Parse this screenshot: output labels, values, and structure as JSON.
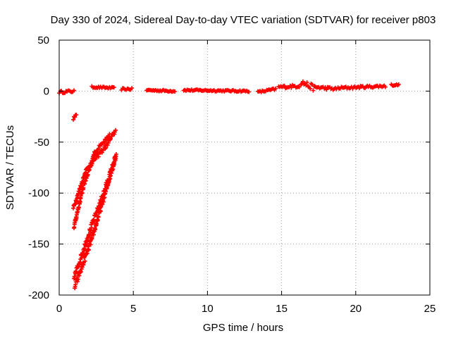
{
  "chart_data": {
    "type": "scatter",
    "title": "Day 330 of 2024, Sidereal Day-to-day VTEC variation (SDTVAR) for receiver p803",
    "xlabel": "GPS time / hours",
    "ylabel": "SDTVAR / TECUs",
    "xlim": [
      0,
      25
    ],
    "ylim": [
      -200,
      50
    ],
    "xticks": [
      0,
      5,
      10,
      15,
      20,
      25
    ],
    "yticks": [
      -200,
      -150,
      -100,
      -50,
      0,
      50
    ],
    "grid": true,
    "marker": "plus",
    "color": "#ff0000",
    "series": [
      {
        "name": "SDTVAR",
        "segments": [
          {
            "x": [
              0.0,
              1.0
            ],
            "y": [
              -1,
              0
            ],
            "noise": 1.2
          },
          {
            "x": [
              2.2,
              3.7
            ],
            "y": [
              4,
              3
            ],
            "noise": 0.8
          },
          {
            "x": [
              4.2,
              4.9
            ],
            "y": [
              2,
              2
            ],
            "noise": 1.0
          },
          {
            "x": [
              5.9,
              7.8
            ],
            "y": [
              1,
              0
            ],
            "noise": 0.8
          },
          {
            "x": [
              8.4,
              12.8
            ],
            "y": [
              1,
              0
            ],
            "noise": 0.8
          },
          {
            "x": [
              13.4,
              14.6
            ],
            "y": [
              -1,
              2
            ],
            "noise": 1.0
          },
          {
            "x": [
              14.8,
              16.2
            ],
            "y": [
              4,
              5
            ],
            "noise": 1.5
          },
          {
            "x": [
              16.3,
              17.2
            ],
            "y": [
              9,
              3
            ],
            "noise": 3.0
          },
          {
            "x": [
              17.2,
              18.7
            ],
            "y": [
              4,
              2
            ],
            "noise": 1.5
          },
          {
            "x": [
              18.8,
              22.0
            ],
            "y": [
              3,
              5
            ],
            "noise": 1.2
          },
          {
            "x": [
              22.4,
              22.9
            ],
            "y": [
              6,
              6
            ],
            "noise": 0.8
          },
          {
            "x": [
              0.95,
              1.15
            ],
            "y": [
              -27,
              -23
            ],
            "noise": 1.0
          },
          {
            "x": [
              0.95,
              1.8,
              2.5,
              3.1,
              3.8
            ],
            "y": [
              -115,
              -78,
              -65,
              -55,
              -39
            ],
            "noise": 2.0
          },
          {
            "x": [
              1.0,
              1.6,
              2.4,
              3.4
            ],
            "y": [
              -133,
              -95,
              -60,
              -44
            ],
            "noise": 2.0
          },
          {
            "x": [
              1.0,
              2.0,
              3.0,
              3.8
            ],
            "y": [
              -183,
              -140,
              -100,
              -65
            ],
            "noise": 3.0
          },
          {
            "x": [
              1.05,
              2.2,
              3.2,
              3.85
            ],
            "y": [
              -192,
              -145,
              -95,
              -62
            ],
            "noise": 3.0
          }
        ]
      }
    ]
  }
}
